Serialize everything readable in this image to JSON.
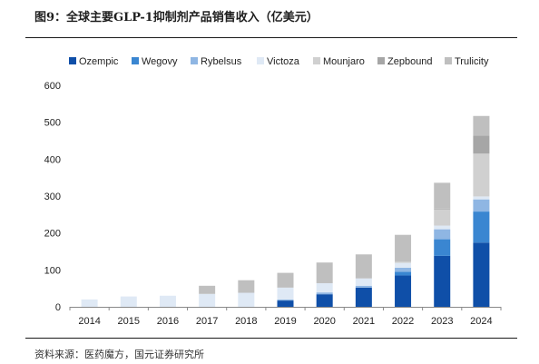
{
  "title": "图9：全球主要GLP-1抑制剂产品销售收入（亿美元）",
  "source": "资料来源：医药魔方，国元证券研究所",
  "chart_data": {
    "type": "bar",
    "stacked": true,
    "categories": [
      "2014",
      "2015",
      "2016",
      "2017",
      "2018",
      "2019",
      "2020",
      "2021",
      "2022",
      "2023",
      "2024"
    ],
    "ylim": [
      0,
      600
    ],
    "yticks": [
      0,
      100,
      200,
      300,
      400,
      500,
      600
    ],
    "legend_position": "top",
    "grid": false,
    "series": [
      {
        "name": "Ozempic",
        "color": "#0f4fa8",
        "values": [
          0,
          0,
          0,
          0,
          0,
          17,
          34,
          52,
          85,
          138,
          174
        ]
      },
      {
        "name": "Wegovy",
        "color": "#3a86d1",
        "values": [
          0,
          0,
          0,
          0,
          0,
          0,
          0,
          0,
          10,
          45,
          84
        ]
      },
      {
        "name": "Rybelsus",
        "color": "#8fb6e3",
        "values": [
          0,
          0,
          0,
          0,
          0,
          3,
          5,
          5,
          11,
          27,
          33
        ]
      },
      {
        "name": "Victoza",
        "color": "#dfe9f5",
        "values": [
          20,
          28,
          30,
          35,
          38,
          32,
          25,
          20,
          13,
          10,
          8
        ]
      },
      {
        "name": "Mounjaro",
        "color": "#d0d0d0",
        "values": [
          0,
          0,
          0,
          0,
          0,
          0,
          0,
          0,
          3,
          44,
          116
        ]
      },
      {
        "name": "Zepbound",
        "color": "#a6a6a6",
        "values": [
          0,
          0,
          0,
          0,
          0,
          0,
          0,
          0,
          0,
          2,
          49
        ]
      },
      {
        "name": "Trulicity",
        "color": "#bfbfbf",
        "values": [
          0,
          0,
          0,
          22,
          34,
          40,
          56,
          65,
          73,
          70,
          53
        ]
      }
    ]
  }
}
